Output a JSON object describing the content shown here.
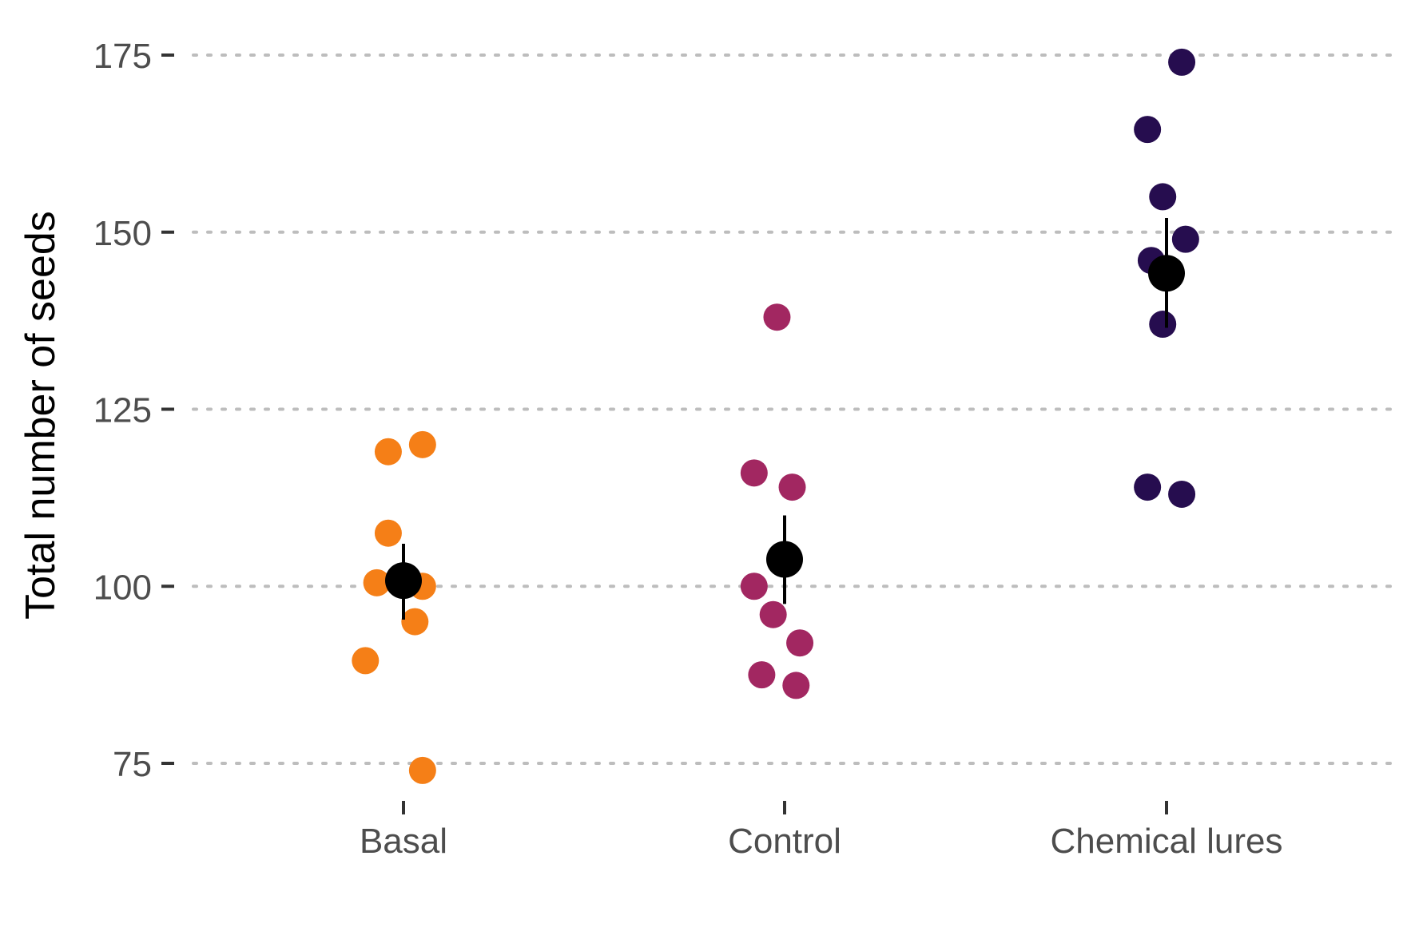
{
  "chart_data": {
    "type": "scatter",
    "title": "",
    "xlabel": "",
    "ylabel": "Total number of seeds",
    "categories": [
      "Basal",
      "Control",
      "Chemical lures"
    ],
    "ylim": [
      70,
      178
    ],
    "yticks": [
      75,
      100,
      125,
      150,
      175
    ],
    "grid": "horizontal dotted",
    "legend": "none",
    "series": [
      {
        "category": "Basal",
        "color": "#f57f17",
        "points": [
          {
            "jitter": -0.04,
            "y": 119
          },
          {
            "jitter": 0.05,
            "y": 120
          },
          {
            "jitter": -0.04,
            "y": 107.5
          },
          {
            "jitter": -0.07,
            "y": 100.5
          },
          {
            "jitter": 0.05,
            "y": 100
          },
          {
            "jitter": 0.03,
            "y": 95
          },
          {
            "jitter": -0.1,
            "y": 89.5
          },
          {
            "jitter": 0.05,
            "y": 74
          }
        ],
        "mean": 100.8,
        "error": [
          95.3,
          106
        ]
      },
      {
        "category": "Control",
        "color": "#a22761",
        "points": [
          {
            "jitter": -0.02,
            "y": 138
          },
          {
            "jitter": -0.08,
            "y": 116
          },
          {
            "jitter": 0.02,
            "y": 114
          },
          {
            "jitter": -0.08,
            "y": 100
          },
          {
            "jitter": -0.03,
            "y": 96
          },
          {
            "jitter": 0.04,
            "y": 92
          },
          {
            "jitter": -0.06,
            "y": 87.5
          },
          {
            "jitter": 0.03,
            "y": 86
          }
        ],
        "mean": 103.8,
        "error": [
          97.5,
          110
        ]
      },
      {
        "category": "Chemical lures",
        "color": "#260d4f",
        "points": [
          {
            "jitter": 0.04,
            "y": 174
          },
          {
            "jitter": -0.05,
            "y": 164.5
          },
          {
            "jitter": -0.01,
            "y": 155
          },
          {
            "jitter": 0.05,
            "y": 149
          },
          {
            "jitter": -0.04,
            "y": 146
          },
          {
            "jitter": -0.01,
            "y": 137
          },
          {
            "jitter": -0.05,
            "y": 114
          },
          {
            "jitter": 0.04,
            "y": 113
          }
        ],
        "mean": 144.2,
        "error": [
          136.5,
          152
        ]
      }
    ],
    "mean_color": "#000000"
  }
}
